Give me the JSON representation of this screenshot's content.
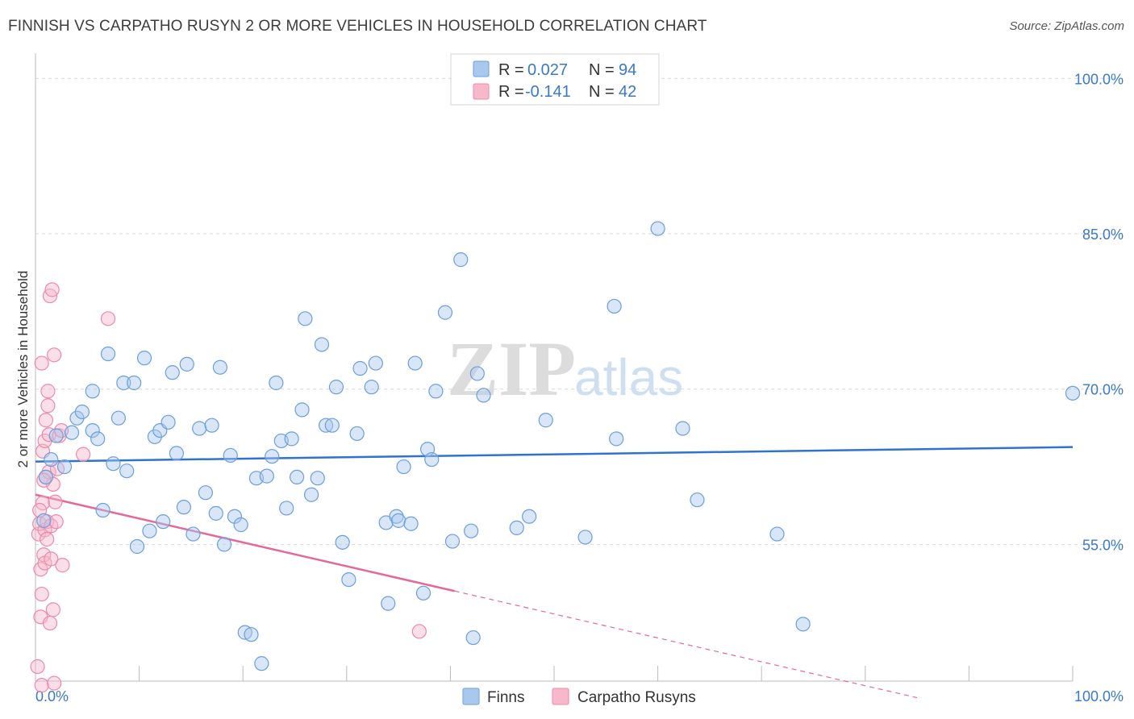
{
  "title": "FINNISH VS CARPATHO RUSYN 2 OR MORE VEHICLES IN HOUSEHOLD CORRELATION CHART",
  "source": "Source: ZipAtlas.com",
  "watermark": {
    "zip": "ZIP",
    "atlas": "atlas"
  },
  "legend_top": {
    "rows": [
      {
        "r_label": "R =",
        "r_value": "0.027",
        "n_label": "N =",
        "n_value": "94"
      },
      {
        "r_label": "R =",
        "r_value": "-0.141",
        "n_label": "N =",
        "n_value": "42"
      }
    ]
  },
  "legend_bottom": {
    "items": [
      "Finns",
      "Carpatho Rusyns"
    ]
  },
  "colors": {
    "finns_fill": "#a9c8ee",
    "finns_stroke": "#6a9fdc",
    "finns_line": "#2f73cf",
    "rusyn_fill": "#f7b8cb",
    "rusyn_stroke": "#ec8aa8",
    "rusyn_line": "#e4689a",
    "grid": "#d9d9d9",
    "axis_text": "#3a78c8"
  },
  "chart_data": {
    "type": "scatter",
    "title": "FINNISH VS CARPATHO RUSYN 2 OR MORE VEHICLES IN HOUSEHOLD CORRELATION CHART",
    "xlabel": "",
    "ylabel": "2 or more Vehicles in Household",
    "x_tick_labels": [
      "0.0%",
      "100.0%"
    ],
    "y_tick_labels": [
      "100.0%",
      "85.0%",
      "70.0%",
      "55.0%"
    ],
    "y_ticks": [
      100,
      85,
      70,
      55
    ],
    "xlim": [
      0,
      100
    ],
    "ylim": [
      41.8,
      101.5
    ],
    "grid": true,
    "legend_placement": "top-center",
    "series": [
      {
        "name": "Finns",
        "R": 0.027,
        "N": 94,
        "trend": {
          "x": [
            0,
            100
          ],
          "y": [
            63.0,
            64.4
          ]
        },
        "points": [
          [
            0.8,
            57.3
          ],
          [
            1.5,
            63.2
          ],
          [
            1.0,
            61.5
          ],
          [
            2.0,
            65.5
          ],
          [
            2.8,
            62.5
          ],
          [
            3.5,
            65.8
          ],
          [
            4.0,
            67.2
          ],
          [
            4.5,
            67.8
          ],
          [
            5.5,
            66.0
          ],
          [
            5.5,
            69.8
          ],
          [
            6.0,
            65.2
          ],
          [
            6.5,
            58.3
          ],
          [
            7.0,
            73.4
          ],
          [
            7.5,
            62.8
          ],
          [
            8.0,
            67.2
          ],
          [
            8.5,
            70.6
          ],
          [
            8.8,
            62.1
          ],
          [
            9.5,
            70.6
          ],
          [
            9.8,
            54.8
          ],
          [
            10.5,
            73.0
          ],
          [
            11.0,
            56.3
          ],
          [
            11.5,
            65.4
          ],
          [
            12.0,
            66.0
          ],
          [
            12.3,
            57.2
          ],
          [
            12.8,
            66.8
          ],
          [
            13.2,
            71.6
          ],
          [
            13.6,
            63.8
          ],
          [
            14.3,
            58.6
          ],
          [
            14.6,
            72.4
          ],
          [
            15.2,
            56.0
          ],
          [
            15.8,
            66.2
          ],
          [
            16.4,
            60.0
          ],
          [
            17.0,
            66.5
          ],
          [
            17.4,
            58.0
          ],
          [
            17.8,
            72.1
          ],
          [
            18.2,
            55.0
          ],
          [
            18.8,
            63.6
          ],
          [
            19.2,
            57.7
          ],
          [
            19.8,
            56.9
          ],
          [
            20.2,
            46.5
          ],
          [
            20.8,
            46.3
          ],
          [
            21.3,
            61.4
          ],
          [
            21.8,
            43.5
          ],
          [
            22.3,
            61.6
          ],
          [
            22.8,
            63.5
          ],
          [
            23.2,
            70.6
          ],
          [
            23.7,
            65.0
          ],
          [
            24.2,
            58.5
          ],
          [
            24.7,
            65.2
          ],
          [
            25.2,
            61.5
          ],
          [
            25.7,
            68.0
          ],
          [
            26.0,
            76.8
          ],
          [
            26.6,
            59.8
          ],
          [
            27.2,
            61.4
          ],
          [
            27.6,
            74.3
          ],
          [
            28.0,
            66.5
          ],
          [
            28.6,
            66.5
          ],
          [
            29.0,
            70.2
          ],
          [
            29.6,
            55.2
          ],
          [
            30.2,
            51.6
          ],
          [
            31.0,
            65.7
          ],
          [
            31.3,
            72.0
          ],
          [
            32.4,
            70.2
          ],
          [
            32.8,
            72.5
          ],
          [
            33.8,
            57.1
          ],
          [
            34.0,
            49.3
          ],
          [
            34.8,
            57.7
          ],
          [
            35.0,
            57.3
          ],
          [
            35.5,
            62.5
          ],
          [
            36.2,
            57.0
          ],
          [
            36.6,
            72.5
          ],
          [
            37.4,
            50.3
          ],
          [
            37.8,
            64.2
          ],
          [
            38.2,
            63.2
          ],
          [
            38.6,
            69.8
          ],
          [
            39.5,
            77.4
          ],
          [
            40.2,
            55.3
          ],
          [
            41.0,
            82.5
          ],
          [
            42.0,
            56.3
          ],
          [
            42.2,
            46.0
          ],
          [
            42.6,
            71.5
          ],
          [
            43.2,
            69.4
          ],
          [
            46.4,
            56.6
          ],
          [
            47.6,
            57.7
          ],
          [
            49.2,
            67.0
          ],
          [
            55.8,
            78.0
          ],
          [
            56.0,
            65.2
          ],
          [
            60.0,
            85.5
          ],
          [
            62.4,
            66.2
          ],
          [
            63.8,
            59.3
          ],
          [
            71.5,
            56.0
          ],
          [
            74.0,
            47.3
          ],
          [
            100.0,
            69.6
          ],
          [
            53.0,
            55.7
          ]
        ]
      },
      {
        "name": "Carpatho Rusyns",
        "R": -0.141,
        "N": 42,
        "trend": {
          "x": [
            0,
            40.4
          ],
          "y": [
            59.8,
            50.5
          ]
        },
        "trend_dashed": {
          "x": [
            40.4,
            85
          ],
          "y": [
            50.5,
            40.2
          ]
        },
        "points": [
          [
            0.2,
            43.2
          ],
          [
            0.3,
            56.0
          ],
          [
            0.4,
            57.0
          ],
          [
            0.5,
            52.6
          ],
          [
            0.5,
            48.0
          ],
          [
            0.6,
            41.4
          ],
          [
            0.6,
            72.5
          ],
          [
            0.7,
            64.0
          ],
          [
            0.7,
            59.0
          ],
          [
            0.8,
            54.0
          ],
          [
            0.9,
            53.2
          ],
          [
            0.9,
            65.0
          ],
          [
            0.9,
            56.4
          ],
          [
            1.0,
            67.0
          ],
          [
            1.0,
            61.5
          ],
          [
            1.1,
            57.2
          ],
          [
            1.2,
            68.4
          ],
          [
            1.2,
            69.8
          ],
          [
            1.3,
            65.6
          ],
          [
            1.3,
            62.0
          ],
          [
            1.4,
            79.0
          ],
          [
            1.4,
            47.4
          ],
          [
            1.5,
            56.8
          ],
          [
            1.5,
            53.6
          ],
          [
            1.6,
            79.6
          ],
          [
            1.7,
            48.7
          ],
          [
            1.7,
            60.8
          ],
          [
            1.8,
            41.6
          ],
          [
            1.8,
            73.3
          ],
          [
            1.9,
            59.1
          ],
          [
            2.0,
            57.2
          ],
          [
            2.1,
            62.3
          ],
          [
            2.3,
            65.5
          ],
          [
            2.5,
            66.0
          ],
          [
            2.6,
            53.0
          ],
          [
            4.6,
            63.7
          ],
          [
            7.0,
            76.8
          ],
          [
            37.0,
            46.6
          ],
          [
            0.4,
            58.3
          ],
          [
            0.8,
            61.2
          ],
          [
            1.1,
            55.5
          ],
          [
            0.6,
            50.2
          ]
        ]
      }
    ]
  }
}
